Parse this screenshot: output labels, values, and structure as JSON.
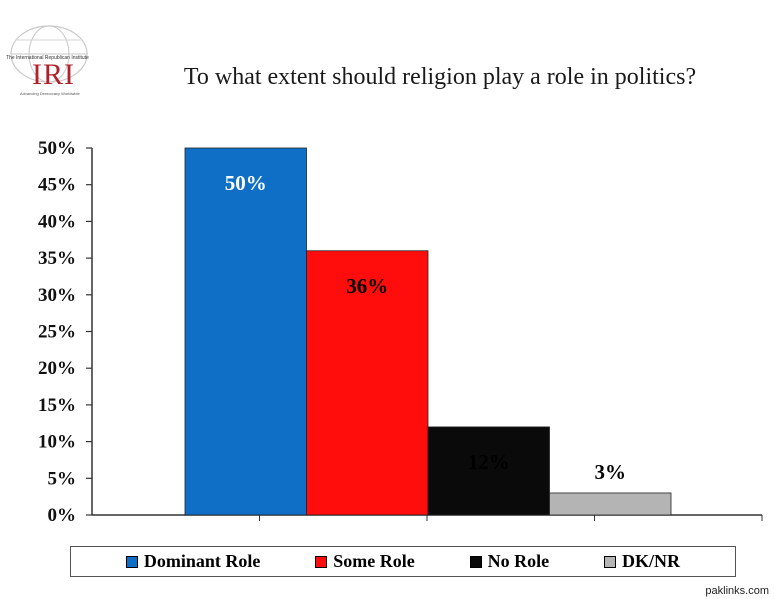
{
  "logo": {
    "institute": "The International Republican Institute",
    "abbr": "IRI",
    "tagline": "Advancing Democracy Worldwide"
  },
  "chart_data": {
    "type": "bar",
    "title": "To what extent should religion play a role in politics?",
    "xlabel": "",
    "ylabel": "",
    "categories": [
      "Dominant Role",
      "Some Role",
      "No Role",
      "DK/NR"
    ],
    "values": [
      50,
      36,
      12,
      3
    ],
    "data_labels": [
      "50%",
      "36%",
      "12%",
      "3%"
    ],
    "colors": [
      "#0f6fc6",
      "#ff0d0d",
      "#0a0a0a",
      "#b4b4b4"
    ],
    "label_colors": [
      "#ffffff",
      "#000000",
      "#000000",
      "#000000"
    ],
    "ylim": [
      0,
      50
    ],
    "yticks": [
      "0%",
      "5%",
      "10%",
      "15%",
      "20%",
      "25%",
      "30%",
      "35%",
      "40%",
      "45%",
      "50%"
    ],
    "grid": false,
    "legend_position": "bottom"
  },
  "watermark": "paklinks.com"
}
